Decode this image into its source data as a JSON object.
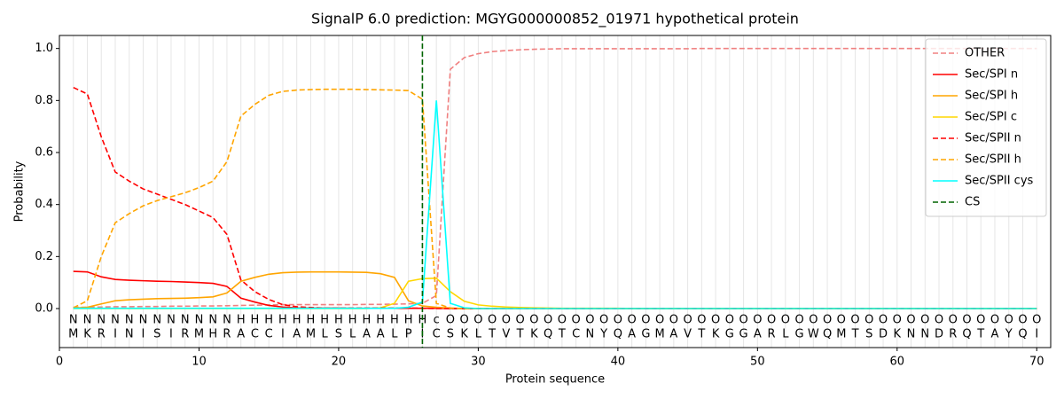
{
  "chart_data": {
    "type": "line",
    "title": "SignalP 6.0 prediction: MGYG000000852_01971 hypothetical protein",
    "x_label": "Protein sequence",
    "y_label": "Probability",
    "xlim": [
      0,
      71
    ],
    "ylim": [
      -0.15,
      1.05
    ],
    "xticks": [
      0,
      10,
      20,
      30,
      40,
      50,
      60,
      70
    ],
    "yticks": [
      {
        "value": 0,
        "label": "0.0"
      },
      0.2,
      0.4,
      0.6,
      0.8,
      {
        "value": 1,
        "label": "1.0"
      }
    ],
    "legend": "upper right",
    "x": [
      1,
      2,
      3,
      4,
      5,
      6,
      7,
      8,
      9,
      10,
      11,
      12,
      13,
      14,
      15,
      16,
      17,
      18,
      19,
      20,
      21,
      22,
      23,
      24,
      25,
      26,
      27,
      28,
      29,
      30,
      31,
      32,
      33,
      34,
      35,
      36,
      37,
      38,
      39,
      40,
      41,
      42,
      43,
      44,
      45,
      46,
      47,
      48,
      49,
      50,
      51,
      52,
      53,
      54,
      55,
      56,
      57,
      58,
      59,
      60,
      61,
      62,
      63,
      64,
      65,
      66,
      67,
      68,
      69,
      70
    ],
    "sequence": [
      "M",
      "K",
      "R",
      "I",
      "N",
      "I",
      "S",
      "I",
      "R",
      "M",
      "H",
      "R",
      "A",
      "C",
      "C",
      "I",
      "A",
      "M",
      "L",
      "S",
      "L",
      "A",
      "A",
      "L",
      "P",
      "I",
      "C",
      "S",
      "K",
      "L",
      "T",
      "V",
      "T",
      "K",
      "Q",
      "T",
      "C",
      "N",
      "Y",
      "Q",
      "A",
      "G",
      "M",
      "A",
      "V",
      "T",
      "K",
      "G",
      "G",
      "A",
      "R",
      "L",
      "G",
      "W",
      "Q",
      "M",
      "T",
      "S",
      "D",
      "K",
      "N",
      "N",
      "D",
      "R",
      "Q",
      "T",
      "A",
      "Y",
      "Q",
      "I"
    ],
    "labels": [
      "N",
      "N",
      "N",
      "N",
      "N",
      "N",
      "N",
      "N",
      "N",
      "N",
      "N",
      "N",
      "H",
      "H",
      "H",
      "H",
      "H",
      "H",
      "H",
      "H",
      "H",
      "H",
      "H",
      "H",
      "H",
      "H",
      "c",
      "O",
      "O",
      "O",
      "O",
      "O",
      "O",
      "O",
      "O",
      "O",
      "O",
      "O",
      "O",
      "O",
      "O",
      "O",
      "O",
      "O",
      "O",
      "O",
      "O",
      "O",
      "O",
      "O",
      "O",
      "O",
      "O",
      "O",
      "O",
      "O",
      "O",
      "O",
      "O",
      "O",
      "O",
      "O",
      "O",
      "O",
      "O",
      "O",
      "O",
      "O",
      "O",
      "O"
    ],
    "label_colors": {
      "N": "#ff0000",
      "H": "#ffa500",
      "c": "#00e5ee",
      "O": "#808080"
    },
    "series": [
      {
        "name": "OTHER",
        "color": "#f08080",
        "dashed": true,
        "values": [
          0.005,
          0.005,
          0.006,
          0.007,
          0.007,
          0.008,
          0.008,
          0.009,
          0.009,
          0.01,
          0.01,
          0.011,
          0.012,
          0.013,
          0.014,
          0.015,
          0.015,
          0.015,
          0.015,
          0.015,
          0.015,
          0.016,
          0.016,
          0.017,
          0.018,
          0.02,
          0.05,
          0.92,
          0.965,
          0.98,
          0.988,
          0.992,
          0.995,
          0.997,
          0.998,
          0.999,
          0.999,
          0.999,
          0.999,
          0.999,
          0.999,
          0.999,
          0.999,
          0.999,
          0.999,
          1,
          1,
          1,
          1,
          1,
          1,
          1,
          1,
          1,
          1,
          1,
          1,
          1,
          1,
          1,
          1,
          1,
          1,
          1,
          1,
          1,
          1,
          1,
          1,
          1
        ]
      },
      {
        "name": "Sec/SPI n",
        "color": "#ff0000",
        "dashed": false,
        "values": [
          0.143,
          0.141,
          0.122,
          0.112,
          0.109,
          0.107,
          0.105,
          0.104,
          0.102,
          0.1,
          0.097,
          0.085,
          0.04,
          0.025,
          0.012,
          0.006,
          0.003,
          0.002,
          0.002,
          0.002,
          0.001,
          0.001,
          0.001,
          0.001,
          0.001,
          0.001,
          0.001,
          0,
          0,
          0,
          0,
          0,
          0,
          0,
          0,
          0,
          0,
          0,
          0,
          0,
          0,
          0,
          0,
          0,
          0,
          0,
          0,
          0,
          0,
          0,
          0,
          0,
          0,
          0,
          0,
          0,
          0,
          0,
          0,
          0,
          0,
          0,
          0,
          0,
          0,
          0,
          0,
          0,
          0,
          0
        ]
      },
      {
        "name": "Sec/SPI h",
        "color": "#ffa500",
        "dashed": false,
        "values": [
          0.002,
          0.005,
          0.018,
          0.03,
          0.034,
          0.036,
          0.038,
          0.039,
          0.04,
          0.042,
          0.045,
          0.06,
          0.105,
          0.12,
          0.132,
          0.138,
          0.14,
          0.141,
          0.141,
          0.141,
          0.14,
          0.139,
          0.134,
          0.12,
          0.03,
          0.01,
          0.005,
          0.002,
          0,
          0,
          0,
          0,
          0,
          0,
          0,
          0,
          0,
          0,
          0,
          0,
          0,
          0,
          0,
          0,
          0,
          0,
          0,
          0,
          0,
          0,
          0,
          0,
          0,
          0,
          0,
          0,
          0,
          0,
          0,
          0,
          0,
          0,
          0,
          0,
          0,
          0,
          0,
          0,
          0,
          0
        ]
      },
      {
        "name": "Sec/SPI c",
        "color": "#ffd700",
        "dashed": false,
        "values": [
          0,
          0,
          0,
          0,
          0,
          0,
          0,
          0,
          0,
          0,
          0,
          0,
          0,
          0,
          0,
          0,
          0,
          0,
          0,
          0,
          0,
          0,
          0.003,
          0.02,
          0.105,
          0.115,
          0.117,
          0.065,
          0.028,
          0.014,
          0.009,
          0.006,
          0.004,
          0.003,
          0.002,
          0.001,
          0.001,
          0.001,
          0.001,
          0.001,
          0,
          0,
          0,
          0,
          0,
          0,
          0,
          0,
          0,
          0,
          0,
          0,
          0,
          0,
          0,
          0,
          0,
          0,
          0,
          0,
          0,
          0,
          0,
          0,
          0,
          0,
          0,
          0,
          0,
          0
        ]
      },
      {
        "name": "Sec/SPII n",
        "color": "#ff0000",
        "dashed": true,
        "values": [
          0.85,
          0.825,
          0.66,
          0.525,
          0.49,
          0.46,
          0.44,
          0.42,
          0.4,
          0.375,
          0.35,
          0.285,
          0.11,
          0.065,
          0.035,
          0.015,
          0.007,
          0.004,
          0.002,
          0.002,
          0.002,
          0.002,
          0.002,
          0.002,
          0.002,
          0.001,
          0,
          0,
          0,
          0,
          0,
          0,
          0,
          0,
          0,
          0,
          0,
          0,
          0,
          0,
          0,
          0,
          0,
          0,
          0,
          0,
          0,
          0,
          0,
          0,
          0,
          0,
          0,
          0,
          0,
          0,
          0,
          0,
          0,
          0,
          0,
          0,
          0,
          0,
          0,
          0,
          0,
          0,
          0,
          0
        ]
      },
      {
        "name": "Sec/SPII h",
        "color": "#ffa500",
        "dashed": true,
        "values": [
          0.003,
          0.03,
          0.2,
          0.33,
          0.365,
          0.395,
          0.415,
          0.43,
          0.445,
          0.465,
          0.49,
          0.565,
          0.74,
          0.785,
          0.82,
          0.835,
          0.84,
          0.842,
          0.843,
          0.843,
          0.843,
          0.842,
          0.841,
          0.84,
          0.838,
          0.805,
          0.02,
          0.002,
          0,
          0,
          0,
          0,
          0,
          0,
          0,
          0,
          0,
          0,
          0,
          0,
          0,
          0,
          0,
          0,
          0,
          0,
          0,
          0,
          0,
          0,
          0,
          0,
          0,
          0,
          0,
          0,
          0,
          0,
          0,
          0,
          0,
          0,
          0,
          0,
          0,
          0,
          0,
          0,
          0,
          0
        ]
      },
      {
        "name": "Sec/SPII cys",
        "color": "#00ffff",
        "dashed": false,
        "values": [
          0.001,
          0.001,
          0.001,
          0.001,
          0.001,
          0.001,
          0.001,
          0.001,
          0.001,
          0.001,
          0.001,
          0.001,
          0.001,
          0.001,
          0.001,
          0.001,
          0.001,
          0.001,
          0.001,
          0.001,
          0.001,
          0.001,
          0.001,
          0.001,
          0.005,
          0.025,
          0.8,
          0.02,
          0.003,
          0,
          0,
          0,
          0,
          0,
          0,
          0,
          0,
          0,
          0,
          0,
          0,
          0,
          0,
          0,
          0,
          0,
          0,
          0,
          0,
          0,
          0,
          0,
          0,
          0,
          0,
          0,
          0,
          0,
          0,
          0,
          0,
          0,
          0,
          0,
          0,
          0,
          0,
          0,
          0,
          0
        ]
      }
    ],
    "cs": {
      "name": "CS",
      "x": 26,
      "color": "#006400"
    }
  }
}
